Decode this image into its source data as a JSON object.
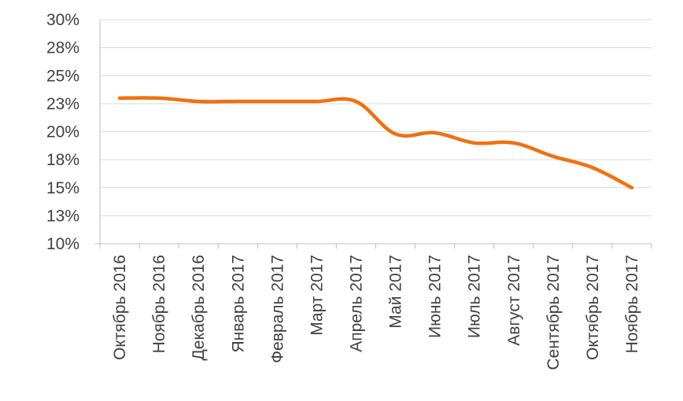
{
  "chart_data": {
    "type": "line",
    "title": "",
    "xlabel": "",
    "ylabel": "",
    "categories": [
      "Октябрь 2016",
      "Ноябрь 2016",
      "Декабрь 2016",
      "Январь 2017",
      "Февраль 2017",
      "Март 2017",
      "Апрель 2017",
      "Май 2017",
      "Июнь 2017",
      "Июль 2017",
      "Август 2017",
      "Сентябрь 2017",
      "Октябрь 2017",
      "Ноябрь 2017"
    ],
    "series": [
      {
        "values": [
          23.0,
          23.0,
          22.7,
          22.7,
          22.7,
          22.7,
          22.7,
          19.8,
          19.9,
          19.0,
          19.0,
          17.8,
          16.8,
          15.0
        ]
      }
    ],
    "ylim": [
      10,
      30
    ],
    "yticks": [
      {
        "value": 10,
        "label": "10%"
      },
      {
        "value": 12.5,
        "label": "13%"
      },
      {
        "value": 15,
        "label": "15%"
      },
      {
        "value": 17.5,
        "label": "18%"
      },
      {
        "value": 20,
        "label": "20%"
      },
      {
        "value": 22.5,
        "label": "23%"
      },
      {
        "value": 25,
        "label": "25%"
      },
      {
        "value": 27.5,
        "label": "28%"
      },
      {
        "value": 30,
        "label": "30%"
      }
    ],
    "grid": true,
    "legend": "none",
    "line_color": "#f07010"
  }
}
